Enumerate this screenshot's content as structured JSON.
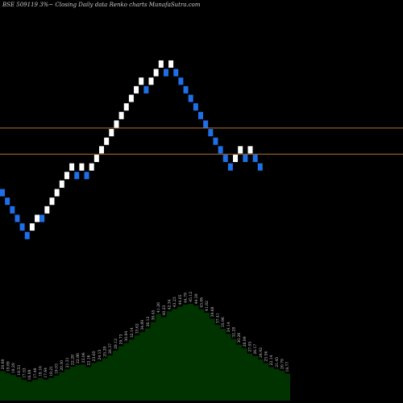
{
  "chart_data": {
    "type": "renko",
    "title": "BSE 509119 3%~  Closing Daily data  Renko  charts MunafaSutra.com",
    "up_color": "#ffffff",
    "down_color": "#1e6fe8",
    "line_color": "#b87333",
    "volume_color": "#003300",
    "resistance_levels": [
      22.6,
      13.5
    ],
    "price_range": [
      -20,
      66
    ],
    "bricks": [
      {
        "dir": "down",
        "value": 0
      },
      {
        "dir": "down",
        "value": -3
      },
      {
        "dir": "down",
        "value": -6
      },
      {
        "dir": "down",
        "value": -9
      },
      {
        "dir": "down",
        "value": -12
      },
      {
        "dir": "down",
        "value": -15
      },
      {
        "dir": "up",
        "value": -12
      },
      {
        "dir": "up",
        "value": -9
      },
      {
        "dir": "down",
        "value": -9
      },
      {
        "dir": "up",
        "value": -6
      },
      {
        "dir": "up",
        "value": -3
      },
      {
        "dir": "up",
        "value": 0
      },
      {
        "dir": "up",
        "value": 3
      },
      {
        "dir": "up",
        "value": 6
      },
      {
        "dir": "up",
        "value": 9
      },
      {
        "dir": "down",
        "value": 6
      },
      {
        "dir": "up",
        "value": 9
      },
      {
        "dir": "down",
        "value": 6
      },
      {
        "dir": "up",
        "value": 9
      },
      {
        "dir": "up",
        "value": 12
      },
      {
        "dir": "up",
        "value": 15
      },
      {
        "dir": "up",
        "value": 18
      },
      {
        "dir": "up",
        "value": 21
      },
      {
        "dir": "up",
        "value": 24
      },
      {
        "dir": "up",
        "value": 27
      },
      {
        "dir": "up",
        "value": 30
      },
      {
        "dir": "up",
        "value": 33
      },
      {
        "dir": "up",
        "value": 36
      },
      {
        "dir": "up",
        "value": 39
      },
      {
        "dir": "down",
        "value": 36
      },
      {
        "dir": "up",
        "value": 39
      },
      {
        "dir": "up",
        "value": 42
      },
      {
        "dir": "up",
        "value": 45
      },
      {
        "dir": "down",
        "value": 42
      },
      {
        "dir": "up",
        "value": 45
      },
      {
        "dir": "down",
        "value": 42
      },
      {
        "dir": "down",
        "value": 39
      },
      {
        "dir": "down",
        "value": 36
      },
      {
        "dir": "down",
        "value": 33
      },
      {
        "dir": "down",
        "value": 30
      },
      {
        "dir": "down",
        "value": 27
      },
      {
        "dir": "down",
        "value": 24
      },
      {
        "dir": "down",
        "value": 21
      },
      {
        "dir": "down",
        "value": 18
      },
      {
        "dir": "down",
        "value": 15
      },
      {
        "dir": "down",
        "value": 12
      },
      {
        "dir": "down",
        "value": 9
      },
      {
        "dir": "up",
        "value": 12
      },
      {
        "dir": "up",
        "value": 15
      },
      {
        "dir": "down",
        "value": 12
      },
      {
        "dir": "up",
        "value": 15
      },
      {
        "dir": "down",
        "value": 12
      },
      {
        "dir": "down",
        "value": 9
      }
    ],
    "volume_labels": [
      "20.69",
      "19.89",
      "19.29",
      "18.53",
      "17.53",
      "16.88",
      "17.48",
      "18.16",
      "17.64",
      "18.21",
      "19.03",
      "20.30",
      "21.31",
      "22.28",
      "22.86",
      "23.06",
      "22.16",
      "23.65",
      "24.15",
      "25.28",
      "26.37",
      "28.12",
      "29.73",
      "30.84",
      "32.14",
      "33.62",
      "34.89",
      "36.12",
      "38.45",
      "41.26",
      "40.23",
      "42.34",
      "43.23",
      "44.05",
      "44.78",
      "45.12",
      "44.39",
      "43.06",
      "41.82",
      "39.68",
      "37.41",
      "35.96",
      "34.14",
      "32.28",
      "30.26",
      "28.89",
      "27.05",
      "26.17",
      "24.92",
      "23.56",
      "22.14",
      "21.45",
      "20.79",
      "19.77"
    ],
    "volume_range": [
      10,
      50
    ]
  }
}
